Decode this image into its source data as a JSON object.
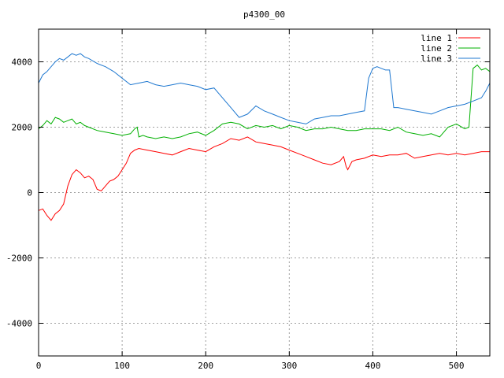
{
  "chart_data": {
    "type": "line",
    "title": "p4300_00",
    "xlabel": "",
    "ylabel": "",
    "xlim": [
      0,
      540
    ],
    "ylim": [
      -5000,
      5000
    ],
    "xticks": [
      0,
      100,
      200,
      300,
      400,
      500
    ],
    "yticks": [
      -4000,
      -2000,
      0,
      2000,
      4000
    ],
    "grid": true,
    "legend_position": "top-right",
    "series": [
      {
        "name": "line 1",
        "color": "#ff0000",
        "x": [
          0,
          5,
          10,
          15,
          20,
          25,
          30,
          35,
          40,
          45,
          50,
          55,
          60,
          65,
          70,
          75,
          80,
          85,
          90,
          95,
          100,
          105,
          110,
          115,
          120,
          130,
          140,
          150,
          160,
          170,
          180,
          190,
          200,
          210,
          220,
          230,
          240,
          250,
          260,
          270,
          280,
          290,
          300,
          310,
          320,
          330,
          340,
          350,
          360,
          365,
          368,
          370,
          375,
          380,
          390,
          400,
          410,
          420,
          430,
          440,
          450,
          460,
          470,
          480,
          490,
          500,
          510,
          520,
          530,
          540
        ],
        "y": [
          -550,
          -500,
          -700,
          -850,
          -650,
          -550,
          -350,
          200,
          550,
          700,
          600,
          450,
          500,
          400,
          100,
          50,
          200,
          350,
          400,
          500,
          700,
          900,
          1200,
          1300,
          1350,
          1300,
          1250,
          1200,
          1150,
          1250,
          1350,
          1300,
          1250,
          1400,
          1500,
          1650,
          1600,
          1700,
          1550,
          1500,
          1450,
          1400,
          1300,
          1200,
          1100,
          1000,
          900,
          850,
          950,
          1100,
          800,
          700,
          950,
          1000,
          1050,
          1150,
          1100,
          1150,
          1150,
          1200,
          1050,
          1100,
          1150,
          1200,
          1150,
          1200,
          1150,
          1200,
          1250,
          1250
        ]
      },
      {
        "name": "line 2",
        "color": "#00b000",
        "x": [
          0,
          5,
          10,
          15,
          20,
          25,
          30,
          35,
          40,
          45,
          50,
          55,
          60,
          70,
          80,
          90,
          100,
          110,
          115,
          118,
          120,
          125,
          130,
          140,
          150,
          160,
          170,
          180,
          190,
          200,
          210,
          220,
          230,
          240,
          250,
          260,
          270,
          280,
          290,
          300,
          310,
          320,
          330,
          340,
          350,
          360,
          370,
          380,
          390,
          400,
          410,
          420,
          430,
          440,
          450,
          460,
          470,
          480,
          490,
          500,
          510,
          515,
          520,
          525,
          530,
          535,
          540
        ],
        "y": [
          1950,
          2050,
          2200,
          2100,
          2300,
          2250,
          2150,
          2200,
          2250,
          2100,
          2150,
          2050,
          2000,
          1900,
          1850,
          1800,
          1750,
          1800,
          1950,
          2000,
          1700,
          1750,
          1700,
          1650,
          1700,
          1650,
          1700,
          1800,
          1850,
          1750,
          1900,
          2100,
          2150,
          2100,
          1950,
          2050,
          2000,
          2050,
          1950,
          2050,
          2000,
          1900,
          1950,
          1950,
          2000,
          1950,
          1900,
          1900,
          1950,
          1950,
          1950,
          1900,
          2000,
          1850,
          1800,
          1750,
          1800,
          1700,
          2000,
          2100,
          1950,
          2000,
          3800,
          3900,
          3750,
          3800,
          3700
        ]
      },
      {
        "name": "line 3",
        "color": "#1f78d0",
        "x": [
          0,
          5,
          10,
          15,
          20,
          25,
          30,
          35,
          40,
          45,
          50,
          55,
          60,
          70,
          80,
          90,
          100,
          110,
          120,
          130,
          140,
          150,
          160,
          170,
          180,
          190,
          200,
          210,
          220,
          230,
          240,
          250,
          260,
          270,
          280,
          290,
          300,
          310,
          320,
          330,
          340,
          350,
          360,
          370,
          380,
          390,
          395,
          400,
          405,
          410,
          415,
          420,
          425,
          430,
          440,
          450,
          460,
          470,
          480,
          490,
          500,
          510,
          520,
          530,
          535,
          540
        ],
        "y": [
          3350,
          3600,
          3700,
          3850,
          4000,
          4100,
          4050,
          4150,
          4250,
          4200,
          4250,
          4150,
          4100,
          3950,
          3850,
          3700,
          3500,
          3300,
          3350,
          3400,
          3300,
          3250,
          3300,
          3350,
          3300,
          3250,
          3150,
          3200,
          2900,
          2600,
          2300,
          2400,
          2650,
          2500,
          2400,
          2300,
          2200,
          2150,
          2100,
          2250,
          2300,
          2350,
          2350,
          2400,
          2450,
          2500,
          3500,
          3800,
          3850,
          3800,
          3750,
          3750,
          2600,
          2600,
          2550,
          2500,
          2450,
          2400,
          2500,
          2600,
          2650,
          2700,
          2800,
          2900,
          3100,
          3350
        ]
      }
    ]
  }
}
